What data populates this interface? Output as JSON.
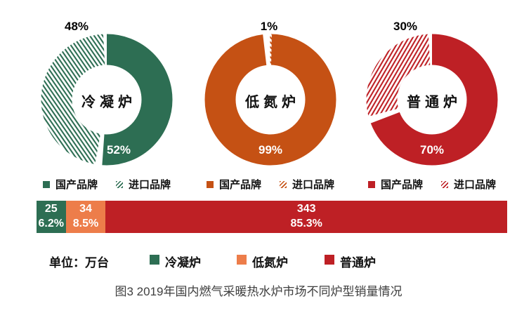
{
  "donuts": [
    {
      "name": "冷凝炉",
      "color": "#2D6E53",
      "solid_pct": 52,
      "solid_label": "52%",
      "hatch_label": "48%",
      "legend": {
        "domestic": "国产品牌",
        "imported": "进口品牌"
      }
    },
    {
      "name": "低氮炉",
      "color": "#C55114",
      "solid_pct": 99,
      "solid_label": "99%",
      "hatch_label": "1%",
      "legend": {
        "domestic": "国产品牌",
        "imported": "进口品牌"
      }
    },
    {
      "name": "普通炉",
      "color": "#BE2025",
      "solid_pct": 70,
      "solid_label": "70%",
      "hatch_label": "30%",
      "legend": {
        "domestic": "国产品牌",
        "imported": "进口品牌"
      }
    }
  ],
  "bar": {
    "segments": [
      {
        "label": "冷凝炉",
        "value": "25",
        "pct": "6.2%",
        "width": "6.2%",
        "color": "#2D6E53"
      },
      {
        "label": "低氮炉",
        "value": "34",
        "pct": "8.5%",
        "width": "8.5%",
        "color": "#ED7D4A"
      },
      {
        "label": "普通炉",
        "value": "343",
        "pct": "85.3%",
        "width": "85.3%",
        "color": "#BE2025"
      }
    ]
  },
  "footer": {
    "unit_label": "单位：万台",
    "legend": [
      {
        "label": "冷凝炉",
        "color": "#2D6E53"
      },
      {
        "label": "低氮炉",
        "color": "#ED7D4A"
      },
      {
        "label": "普通炉",
        "color": "#BE2025"
      }
    ]
  },
  "caption": "图3 2019年国内燃气采暖热水炉市场不同炉型销量情况",
  "chart_data": [
    {
      "type": "pie",
      "subtype": "donut",
      "title": "冷凝炉",
      "labels": [
        "国产品牌",
        "进口品牌"
      ],
      "values": [
        52,
        48
      ],
      "unit": "%",
      "colors": [
        "#2D6E53",
        "hatched #2D6E53"
      ],
      "legend_position": "bottom"
    },
    {
      "type": "pie",
      "subtype": "donut",
      "title": "低氮炉",
      "labels": [
        "国产品牌",
        "进口品牌"
      ],
      "values": [
        99,
        1
      ],
      "unit": "%",
      "colors": [
        "#C55114",
        "hatched #C55114"
      ],
      "legend_position": "bottom"
    },
    {
      "type": "pie",
      "subtype": "donut",
      "title": "普通炉",
      "labels": [
        "国产品牌",
        "进口品牌"
      ],
      "values": [
        70,
        30
      ],
      "unit": "%",
      "colors": [
        "#BE2025",
        "hatched #BE2025"
      ],
      "legend_position": "bottom"
    },
    {
      "type": "bar",
      "subtype": "stacked-horizontal",
      "title": "2019年国内燃气采暖热水炉市场不同炉型销量情况",
      "unit": "万台",
      "categories": [
        "冷凝炉",
        "低氮炉",
        "普通炉"
      ],
      "values": [
        25,
        34,
        343
      ],
      "percents": [
        6.2,
        8.5,
        85.3
      ],
      "colors": [
        "#2D6E53",
        "#ED7D4A",
        "#BE2025"
      ]
    }
  ]
}
